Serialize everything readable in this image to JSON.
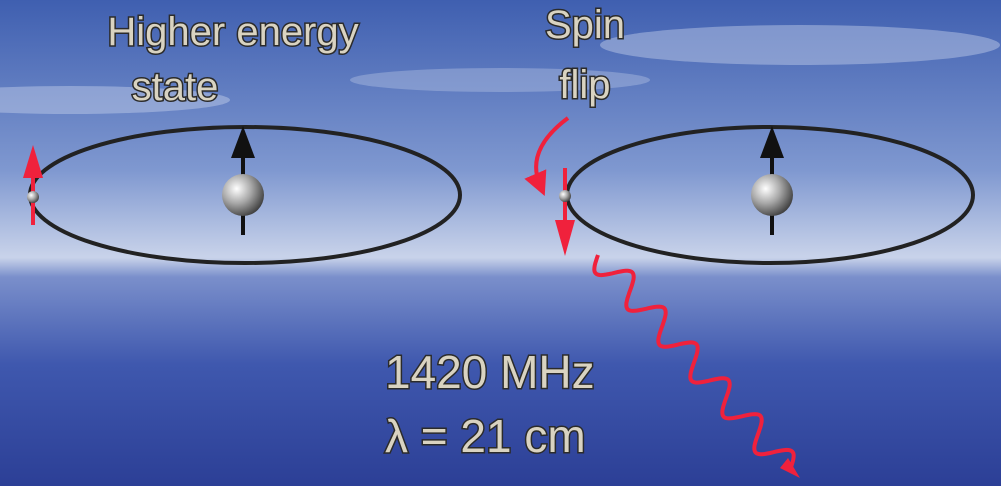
{
  "labels": {
    "higher_energy": [
      "Higher energy",
      "state"
    ],
    "spin_flip": [
      "Spin",
      "flip"
    ],
    "frequency": "1420 MHz",
    "wavelength": "λ = 21 cm"
  }
}
